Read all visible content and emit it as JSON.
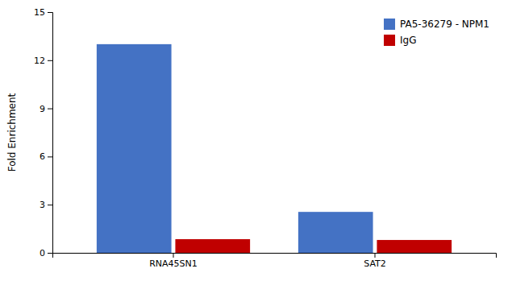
{
  "chart_data": {
    "type": "bar",
    "ylabel": "Fold Enrichment",
    "categories": [
      "RNA45SN1",
      "SAT2"
    ],
    "series": [
      {
        "name": "PA5-36279 - NPM1",
        "color": "#4472C4",
        "values": [
          13.0,
          2.55
        ]
      },
      {
        "name": "IgG",
        "color": "#C00000",
        "values": [
          0.85,
          0.8
        ]
      }
    ],
    "ylim": [
      0,
      15
    ],
    "yticks": [
      0,
      3,
      6,
      9,
      12,
      15
    ],
    "legend": "upper right"
  }
}
